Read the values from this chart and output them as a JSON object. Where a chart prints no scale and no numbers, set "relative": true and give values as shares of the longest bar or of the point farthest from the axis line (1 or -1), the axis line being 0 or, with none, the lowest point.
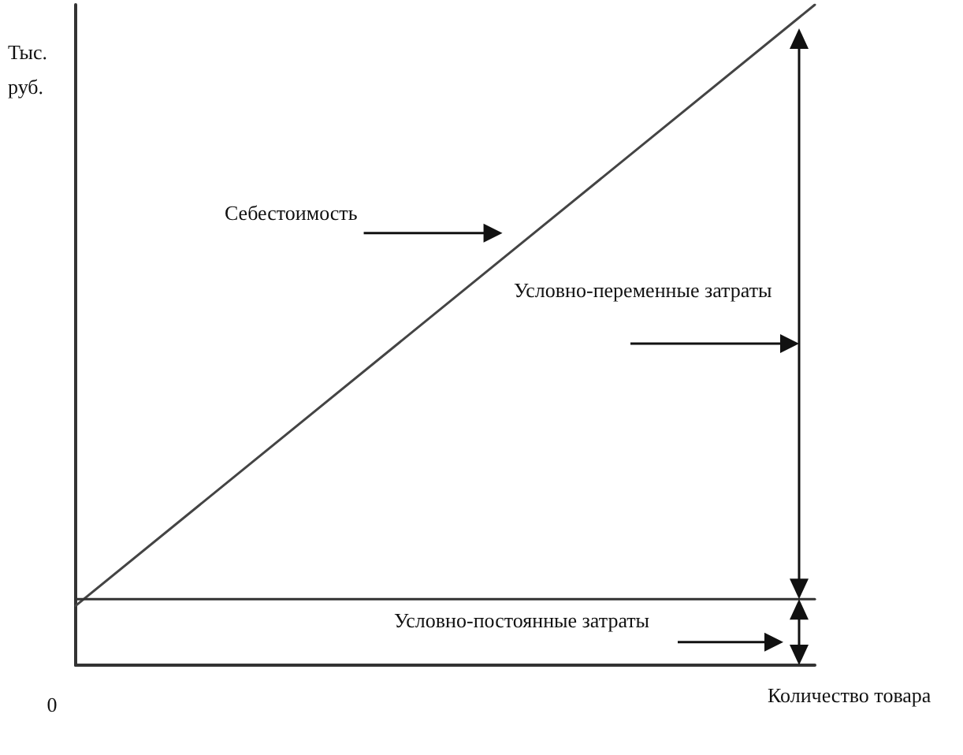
{
  "chart_data": {
    "type": "line",
    "relative": true,
    "xlabel": "Количество товара",
    "ylabel": "Тыс. руб.",
    "categories": [
      null,
      null
    ],
    "series": [
      {
        "name": "Себестоимость",
        "color": "#444444",
        "values": [
          0.09,
          1
        ]
      },
      {
        "color": "#333333",
        "values": [
          0.1,
          0.1
        ]
      }
    ],
    "annotations": [
      "0",
      "Условно-переменные затраты",
      "Условно-постоянные затраты"
    ],
    "marker": "none",
    "line_style": "solid"
  }
}
